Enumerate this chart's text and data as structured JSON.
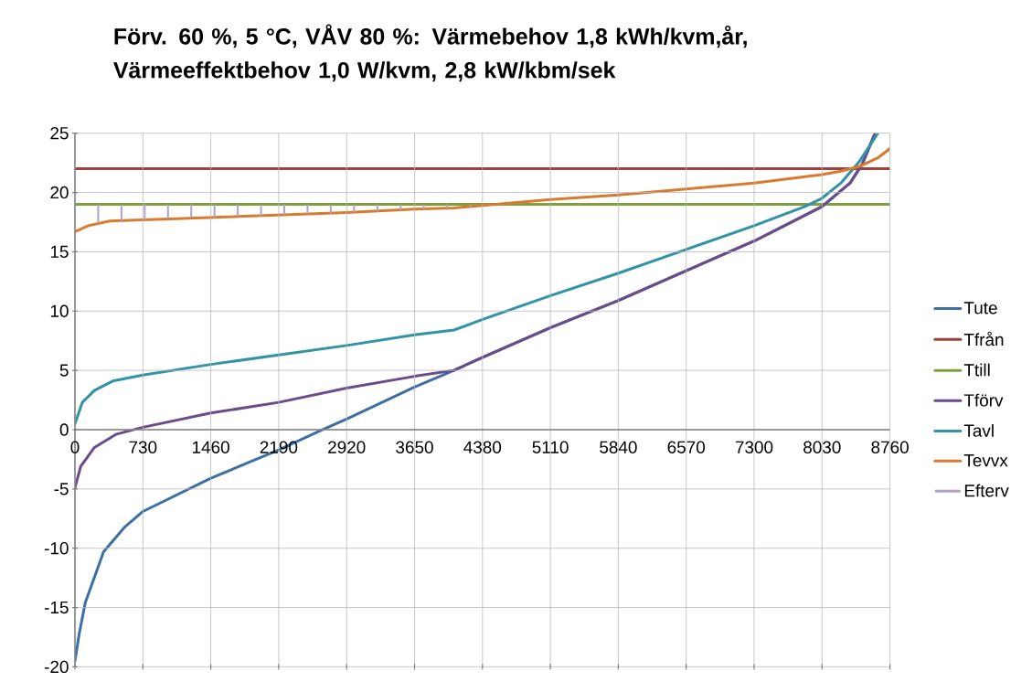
{
  "chart_data": {
    "type": "line",
    "title": "Förv. 60 %, 5 °C, VÅV 80 %: Värmebehov 1,8 kWh/kvm,år, Värmeeffektbehov 1,0 W/kvm, 2,8 kW/kbm/sek",
    "xlim": [
      0,
      8760
    ],
    "ylim": [
      -20,
      25
    ],
    "xticks": [
      0,
      730,
      1460,
      2190,
      2920,
      3650,
      4380,
      5110,
      5840,
      6570,
      7300,
      8030,
      8760
    ],
    "yticks": [
      -20,
      -15,
      -10,
      -5,
      0,
      5,
      10,
      15,
      20,
      25
    ],
    "grid": true,
    "legend": "right",
    "marker": "none",
    "line_style": "solid",
    "series": [
      {
        "name": "Tute",
        "color": "#3d6fa3",
        "x": [
          0,
          46,
          111,
          308,
          537,
          730,
          1460,
          2190,
          2663,
          2920,
          3650,
          4074,
          4382,
          5112,
          5843,
          6570,
          7300,
          8027,
          8332,
          8463,
          8600
        ],
        "values": [
          -19.5,
          -17.2,
          -14.6,
          -10.3,
          -8.2,
          -6.9,
          -4.1,
          -1.7,
          0,
          0.9,
          3.6,
          5.0,
          6.1,
          8.6,
          10.9,
          13.4,
          15.9,
          18.8,
          20.8,
          22.4,
          25
        ]
      },
      {
        "name": "Tfrån",
        "color": "#a0403e",
        "x": [
          0,
          8760
        ],
        "values": [
          22,
          22
        ]
      },
      {
        "name": "Ttill",
        "color": "#7f9f3e",
        "x": [
          0,
          8760
        ],
        "values": [
          19,
          19
        ]
      },
      {
        "name": "Tförv",
        "color": "#6b4c8a",
        "x": [
          0,
          62,
          209,
          439,
          730,
          1460,
          2190,
          2920,
          3650,
          4074,
          4382,
          5112,
          5843,
          6570,
          7300,
          8027,
          8332,
          8463,
          8600
        ],
        "values": [
          -4.9,
          -3.1,
          -1.5,
          -0.4,
          0.2,
          1.4,
          2.3,
          3.5,
          4.5,
          5.0,
          6.1,
          8.6,
          10.9,
          13.4,
          15.9,
          18.8,
          20.8,
          22.4,
          25
        ]
      },
      {
        "name": "Tavl",
        "color": "#3292a6",
        "x": [
          0,
          79,
          209,
          406,
          730,
          1460,
          2190,
          2920,
          3650,
          4074,
          4382,
          5112,
          5843,
          6570,
          7300,
          7840,
          8027,
          8233,
          8430,
          8630
        ],
        "values": [
          0.5,
          2.3,
          3.3,
          4.1,
          4.6,
          5.5,
          6.3,
          7.1,
          8.0,
          8.4,
          9.3,
          11.3,
          13.2,
          15.2,
          17.2,
          18.8,
          19.5,
          20.8,
          22.6,
          25
        ]
      },
      {
        "name": "Tevvx",
        "color": "#d87b30",
        "x": [
          0,
          144,
          373,
          730,
          1460,
          2190,
          2920,
          3650,
          4074,
          5112,
          5843,
          6570,
          7300,
          8027,
          8233,
          8430,
          8626,
          8760
        ],
        "values": [
          16.7,
          17.2,
          17.6,
          17.7,
          17.9,
          18.1,
          18.3,
          18.6,
          18.7,
          19.4,
          19.8,
          20.3,
          20.8,
          21.5,
          21.8,
          22.2,
          22.9,
          23.7
        ]
      },
      {
        "name": "Efterv",
        "type": "bar",
        "color": "#b3a2c7",
        "x": [
          250,
          500,
          750,
          1000,
          1250,
          1500,
          1750,
          2000,
          2250,
          2500,
          2750,
          3000,
          3250,
          3500,
          3750,
          4000,
          4250
        ],
        "base": [
          17.4,
          17.6,
          17.7,
          17.8,
          17.9,
          17.9,
          18.0,
          18.0,
          18.1,
          18.2,
          18.2,
          18.3,
          18.4,
          18.5,
          18.6,
          18.7,
          18.8
        ],
        "values": [
          1.6,
          1.4,
          1.3,
          1.2,
          1.1,
          1.1,
          1.0,
          1.0,
          0.9,
          0.8,
          0.8,
          0.7,
          0.6,
          0.5,
          0.4,
          0.3,
          0.2
        ]
      }
    ]
  }
}
